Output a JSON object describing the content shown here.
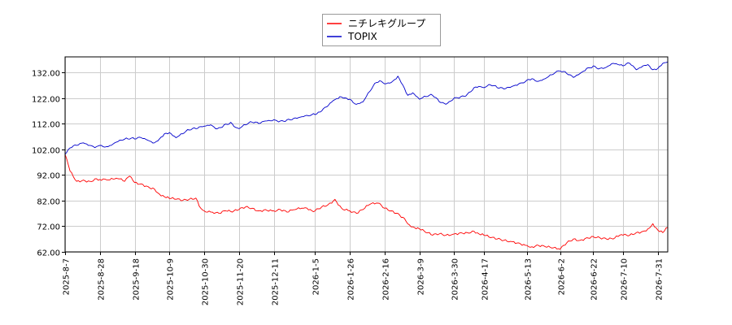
{
  "chart_data": {
    "type": "line",
    "title": "",
    "xlabel": "",
    "ylabel": "",
    "ylim": [
      62,
      138
    ],
    "yticks": [
      62,
      72,
      82,
      92,
      102,
      112,
      122,
      132
    ],
    "ytick_labels": [
      "62.00",
      "72.00",
      "82.00",
      "92.00",
      "102.00",
      "112.00",
      "122.00",
      "132.00"
    ],
    "xlim": [
      "2025-08-07",
      "2026-08-06"
    ],
    "xticks": [
      "2025-8-7",
      "2025-8-28",
      "2025-9-18",
      "2025-10-9",
      "2025-10-30",
      "2025-11-20",
      "2025-12-11",
      "2026-1-5",
      "2026-1-26",
      "2026-2-16",
      "2026-3-9",
      "2026-3-30",
      "2026-4-17",
      "2026-5-13",
      "2026-6-2",
      "2026-6-22",
      "2026-7-10",
      "2026-7-31"
    ],
    "grid": true,
    "legend_position": "top-center",
    "series": [
      {
        "name": "ニチレキグループ",
        "color": "#ff0000",
        "points": [
          [
            "2025-08-07",
            100.0
          ],
          [
            "2025-08-10",
            93.5
          ],
          [
            "2025-08-14",
            89.5
          ],
          [
            "2025-08-18",
            90.0
          ],
          [
            "2025-08-22",
            89.5
          ],
          [
            "2025-08-26",
            90.5
          ],
          [
            "2025-08-28",
            90.2
          ],
          [
            "2025-09-02",
            90.0
          ],
          [
            "2025-09-08",
            90.5
          ],
          [
            "2025-09-12",
            89.5
          ],
          [
            "2025-09-15",
            91.5
          ],
          [
            "2025-09-18",
            89.0
          ],
          [
            "2025-09-22",
            88.5
          ],
          [
            "2025-09-26",
            87.5
          ],
          [
            "2025-09-30",
            86.5
          ],
          [
            "2025-10-03",
            84.5
          ],
          [
            "2025-10-06",
            83.5
          ],
          [
            "2025-10-09",
            82.8
          ],
          [
            "2025-10-13",
            82.5
          ],
          [
            "2025-10-17",
            82.0
          ],
          [
            "2025-10-21",
            82.5
          ],
          [
            "2025-10-25",
            83.0
          ],
          [
            "2025-10-28",
            79.0
          ],
          [
            "2025-10-30",
            78.0
          ],
          [
            "2025-11-04",
            77.5
          ],
          [
            "2025-11-08",
            77.0
          ],
          [
            "2025-11-12",
            78.0
          ],
          [
            "2025-11-16",
            77.5
          ],
          [
            "2025-11-20",
            78.5
          ],
          [
            "2025-11-24",
            79.5
          ],
          [
            "2025-11-28",
            79.0
          ],
          [
            "2025-12-02",
            78.0
          ],
          [
            "2025-12-06",
            78.5
          ],
          [
            "2025-12-11",
            78.0
          ],
          [
            "2025-12-15",
            78.5
          ],
          [
            "2025-12-19",
            77.5
          ],
          [
            "2025-12-24",
            78.5
          ],
          [
            "2025-12-29",
            79.0
          ],
          [
            "2026-01-05",
            78.0
          ],
          [
            "2026-01-09",
            79.5
          ],
          [
            "2026-01-13",
            80.5
          ],
          [
            "2026-01-17",
            82.5
          ],
          [
            "2026-01-21",
            79.0
          ],
          [
            "2026-01-26",
            78.0
          ],
          [
            "2026-01-30",
            77.0
          ],
          [
            "2026-02-03",
            78.5
          ],
          [
            "2026-02-07",
            80.5
          ],
          [
            "2026-02-12",
            81.0
          ],
          [
            "2026-02-16",
            79.0
          ],
          [
            "2026-02-20",
            78.0
          ],
          [
            "2026-02-24",
            77.0
          ],
          [
            "2026-02-28",
            75.0
          ],
          [
            "2026-03-03",
            72.5
          ],
          [
            "2026-03-06",
            71.5
          ],
          [
            "2026-03-09",
            71.0
          ],
          [
            "2026-03-13",
            69.5
          ],
          [
            "2026-03-17",
            68.5
          ],
          [
            "2026-03-21",
            69.0
          ],
          [
            "2026-03-25",
            68.5
          ],
          [
            "2026-03-30",
            69.0
          ],
          [
            "2026-04-03",
            69.5
          ],
          [
            "2026-04-07",
            69.5
          ],
          [
            "2026-04-11",
            70.0
          ],
          [
            "2026-04-14",
            69.0
          ],
          [
            "2026-04-17",
            68.5
          ],
          [
            "2026-04-21",
            67.5
          ],
          [
            "2026-04-25",
            67.0
          ],
          [
            "2026-04-29",
            66.5
          ],
          [
            "2026-05-04",
            66.0
          ],
          [
            "2026-05-08",
            65.5
          ],
          [
            "2026-05-13",
            64.5
          ],
          [
            "2026-05-16",
            64.0
          ],
          [
            "2026-05-20",
            64.5
          ],
          [
            "2026-05-24",
            64.0
          ],
          [
            "2026-05-28",
            63.5
          ],
          [
            "2026-06-02",
            63.0
          ],
          [
            "2026-06-06",
            65.5
          ],
          [
            "2026-06-10",
            67.0
          ],
          [
            "2026-06-14",
            66.5
          ],
          [
            "2026-06-18",
            67.5
          ],
          [
            "2026-06-22",
            68.0
          ],
          [
            "2026-06-26",
            67.5
          ],
          [
            "2026-06-30",
            67.0
          ],
          [
            "2026-07-04",
            67.0
          ],
          [
            "2026-07-07",
            68.0
          ],
          [
            "2026-07-10",
            68.5
          ],
          [
            "2026-07-14",
            68.5
          ],
          [
            "2026-07-18",
            69.5
          ],
          [
            "2026-07-22",
            70.0
          ],
          [
            "2026-07-25",
            71.0
          ],
          [
            "2026-07-28",
            73.0
          ],
          [
            "2026-07-31",
            70.5
          ],
          [
            "2026-08-03",
            69.5
          ],
          [
            "2026-08-06",
            71.5
          ]
        ]
      },
      {
        "name": "TOPIX",
        "color": "#0000cc",
        "points": [
          [
            "2025-08-07",
            100.0
          ],
          [
            "2025-08-10",
            102.5
          ],
          [
            "2025-08-14",
            103.5
          ],
          [
            "2025-08-18",
            104.5
          ],
          [
            "2025-08-22",
            103.5
          ],
          [
            "2025-08-26",
            103.0
          ],
          [
            "2025-08-28",
            103.5
          ],
          [
            "2025-09-02",
            103.0
          ],
          [
            "2025-09-06",
            104.5
          ],
          [
            "2025-09-10",
            105.5
          ],
          [
            "2025-09-14",
            106.0
          ],
          [
            "2025-09-18",
            106.0
          ],
          [
            "2025-09-22",
            106.5
          ],
          [
            "2025-09-26",
            105.5
          ],
          [
            "2025-09-30",
            104.5
          ],
          [
            "2025-10-03",
            106.0
          ],
          [
            "2025-10-06",
            108.0
          ],
          [
            "2025-10-09",
            108.5
          ],
          [
            "2025-10-13",
            106.5
          ],
          [
            "2025-10-17",
            108.0
          ],
          [
            "2025-10-21",
            109.5
          ],
          [
            "2025-10-25",
            110.0
          ],
          [
            "2025-10-30",
            111.0
          ],
          [
            "2025-11-03",
            111.5
          ],
          [
            "2025-11-07",
            110.0
          ],
          [
            "2025-11-11",
            111.5
          ],
          [
            "2025-11-15",
            112.5
          ],
          [
            "2025-11-18",
            110.5
          ],
          [
            "2025-11-20",
            110.0
          ],
          [
            "2025-11-24",
            111.5
          ],
          [
            "2025-11-28",
            112.5
          ],
          [
            "2025-12-02",
            112.0
          ],
          [
            "2025-12-06",
            113.0
          ],
          [
            "2025-12-11",
            113.5
          ],
          [
            "2025-12-15",
            113.0
          ],
          [
            "2025-12-19",
            113.5
          ],
          [
            "2025-12-23",
            114.0
          ],
          [
            "2025-12-27",
            114.5
          ],
          [
            "2026-01-01",
            115.0
          ],
          [
            "2026-01-05",
            115.5
          ],
          [
            "2026-01-08",
            116.5
          ],
          [
            "2026-01-12",
            118.5
          ],
          [
            "2026-01-16",
            121.0
          ],
          [
            "2026-01-20",
            122.5
          ],
          [
            "2026-01-23",
            122.0
          ],
          [
            "2026-01-26",
            121.5
          ],
          [
            "2026-01-30",
            119.5
          ],
          [
            "2026-02-03",
            120.5
          ],
          [
            "2026-02-07",
            124.5
          ],
          [
            "2026-02-11",
            128.0
          ],
          [
            "2026-02-14",
            128.5
          ],
          [
            "2026-02-16",
            127.5
          ],
          [
            "2026-02-20",
            128.0
          ],
          [
            "2026-02-24",
            130.5
          ],
          [
            "2026-02-27",
            127.0
          ],
          [
            "2026-03-02",
            123.0
          ],
          [
            "2026-03-05",
            124.0
          ],
          [
            "2026-03-09",
            121.5
          ],
          [
            "2026-03-13",
            122.5
          ],
          [
            "2026-03-17",
            123.0
          ],
          [
            "2026-03-21",
            120.5
          ],
          [
            "2026-03-25",
            119.5
          ],
          [
            "2026-03-30",
            122.0
          ],
          [
            "2026-04-03",
            122.5
          ],
          [
            "2026-04-07",
            123.5
          ],
          [
            "2026-04-11",
            126.0
          ],
          [
            "2026-04-14",
            126.5
          ],
          [
            "2026-04-17",
            126.0
          ],
          [
            "2026-04-21",
            127.0
          ],
          [
            "2026-04-25",
            126.0
          ],
          [
            "2026-04-29",
            125.5
          ],
          [
            "2026-05-04",
            126.5
          ],
          [
            "2026-05-08",
            127.5
          ],
          [
            "2026-05-13",
            129.0
          ],
          [
            "2026-05-16",
            129.5
          ],
          [
            "2026-05-20",
            128.5
          ],
          [
            "2026-05-24",
            129.5
          ],
          [
            "2026-05-28",
            131.0
          ],
          [
            "2026-06-02",
            132.5
          ],
          [
            "2026-06-06",
            131.5
          ],
          [
            "2026-06-10",
            130.0
          ],
          [
            "2026-06-14",
            131.5
          ],
          [
            "2026-06-18",
            133.5
          ],
          [
            "2026-06-22",
            134.5
          ],
          [
            "2026-06-26",
            133.5
          ],
          [
            "2026-06-30",
            134.0
          ],
          [
            "2026-07-04",
            135.5
          ],
          [
            "2026-07-07",
            135.0
          ],
          [
            "2026-07-10",
            134.5
          ],
          [
            "2026-07-14",
            135.5
          ],
          [
            "2026-07-18",
            133.0
          ],
          [
            "2026-07-22",
            134.5
          ],
          [
            "2026-07-25",
            135.0
          ],
          [
            "2026-07-28",
            133.0
          ],
          [
            "2026-07-31",
            133.5
          ],
          [
            "2026-08-03",
            135.5
          ],
          [
            "2026-08-06",
            136.0
          ]
        ]
      }
    ]
  }
}
